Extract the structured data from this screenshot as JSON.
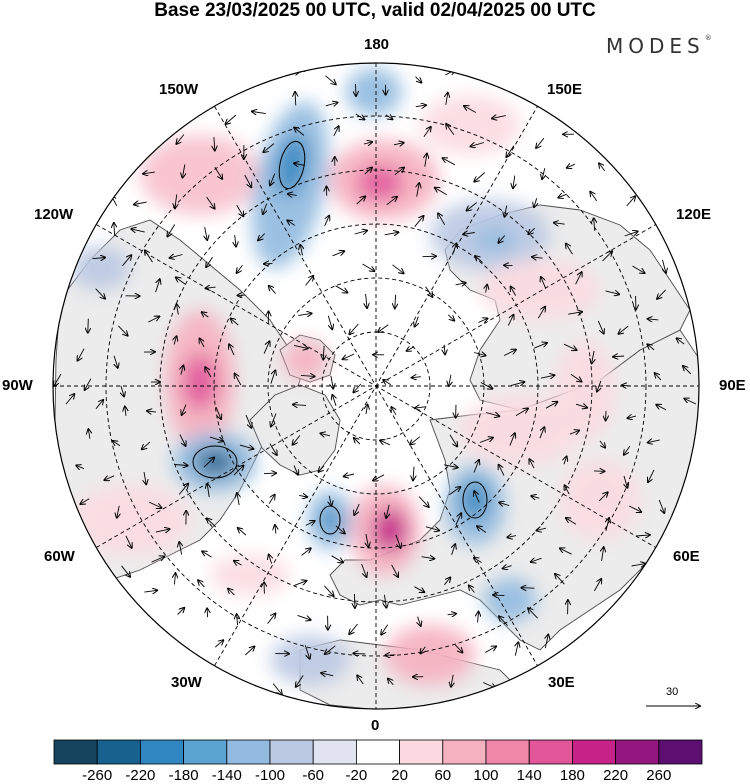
{
  "title": "Base 23/03/2025 00 UTC, valid 02/04/2025 00 UTC",
  "brand": "MODES",
  "brand_mark": "®",
  "longitude_labels": {
    "lon_180": "180",
    "lon_150w": "150W",
    "lon_150e": "150E",
    "lon_120w": "120W",
    "lon_120e": "120E",
    "lon_90w": "90W",
    "lon_90e": "90E",
    "lon_60w": "60W",
    "lon_60e": "60E",
    "lon_30w": "30W",
    "lon_30e": "30E",
    "lon_0": "0"
  },
  "reference_vector": "30",
  "colorbar": {
    "colors": [
      "#14435e",
      "#17618f",
      "#2f86c0",
      "#5ba4d1",
      "#93bbe0",
      "#bcc9e3",
      "#e2e4f1",
      "#ffffff",
      "#fbdbe1",
      "#f6b1c0",
      "#f086a8",
      "#e2579a",
      "#c52387",
      "#94167f",
      "#5d0f71"
    ],
    "ticks": [
      "-260",
      "-220",
      "-180",
      "-140",
      "-100",
      "-60",
      "-20",
      "20",
      "60",
      "100",
      "140",
      "180",
      "220",
      "260"
    ]
  },
  "colors": {
    "land": "#ececec",
    "ocean": "#ffffff",
    "coast": "#4a4a4a",
    "grid": "#000000"
  }
}
